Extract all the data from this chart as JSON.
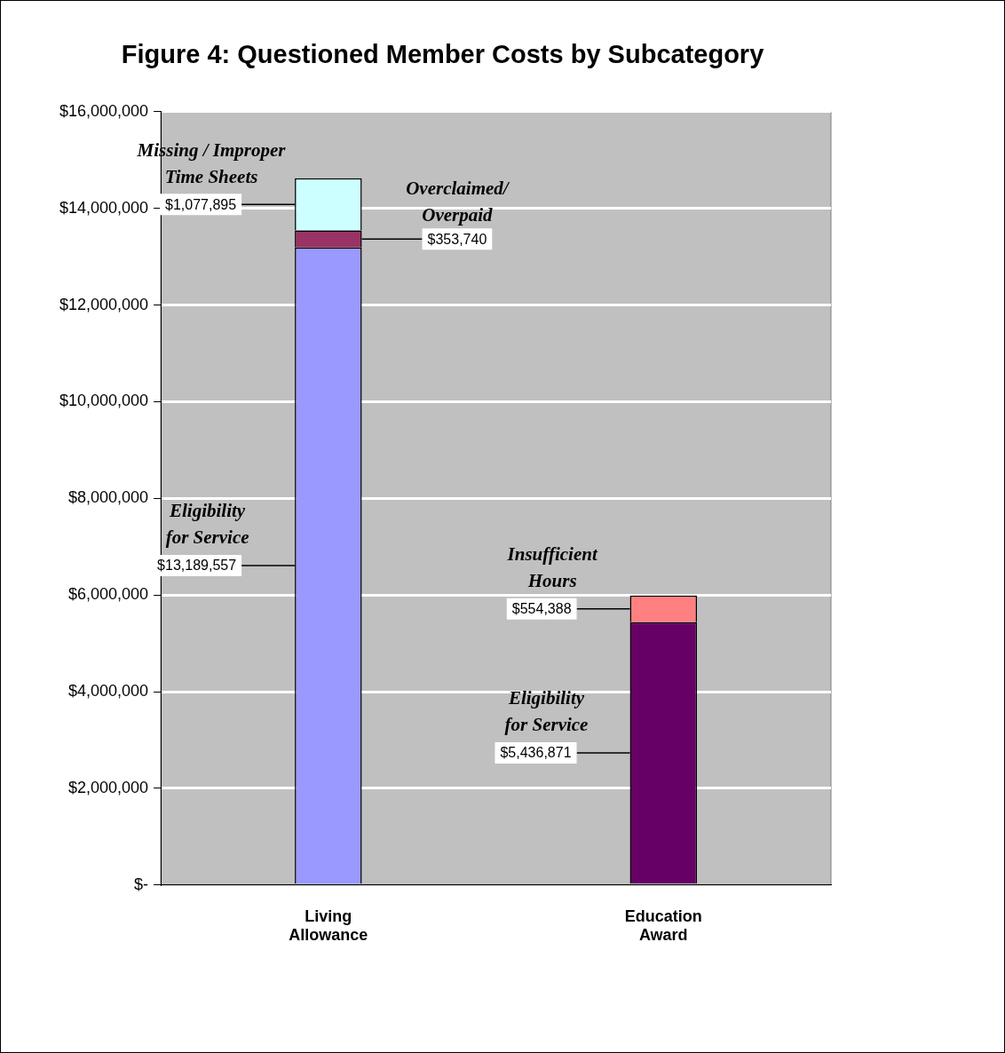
{
  "chart_data": {
    "type": "bar",
    "title": "Figure 4: Questioned Member Costs by Subcategory",
    "categories": [
      "Living Allowance",
      "Education Award"
    ],
    "stacked": true,
    "grid": "y",
    "ylim": [
      0,
      16000000
    ],
    "yticks": [
      {
        "value": 0,
        "label": "$-"
      },
      {
        "value": 2000000,
        "label": "$2,000,000"
      },
      {
        "value": 4000000,
        "label": "$4,000,000"
      },
      {
        "value": 6000000,
        "label": "$6,000,000"
      },
      {
        "value": 8000000,
        "label": "$8,000,000"
      },
      {
        "value": 10000000,
        "label": "$10,000,000"
      },
      {
        "value": 12000000,
        "label": "$12,000,000"
      },
      {
        "value": 14000000,
        "label": "$14,000,000"
      },
      {
        "value": 16000000,
        "label": "$16,000,000"
      }
    ],
    "series": [
      {
        "name": "Eligibility for Service",
        "colors": [
          "#9999ff",
          "#660066"
        ],
        "values": [
          13189557,
          5436871
        ],
        "value_labels": [
          "$13,189,557",
          "$5,436,871"
        ]
      },
      {
        "name": "Overclaimed/ Overpaid",
        "color": "#993366",
        "values": [
          353740,
          null
        ],
        "value_labels": [
          "$353,740",
          null
        ]
      },
      {
        "name": "Missing / Improper Time Sheets",
        "color": "#ccffff",
        "values": [
          1077895,
          null
        ],
        "value_labels": [
          "$1,077,895",
          null
        ]
      },
      {
        "name": "Insufficient Hours",
        "color": "#ff8080",
        "values": [
          null,
          554388
        ],
        "value_labels": [
          null,
          "$554,388"
        ]
      }
    ]
  }
}
